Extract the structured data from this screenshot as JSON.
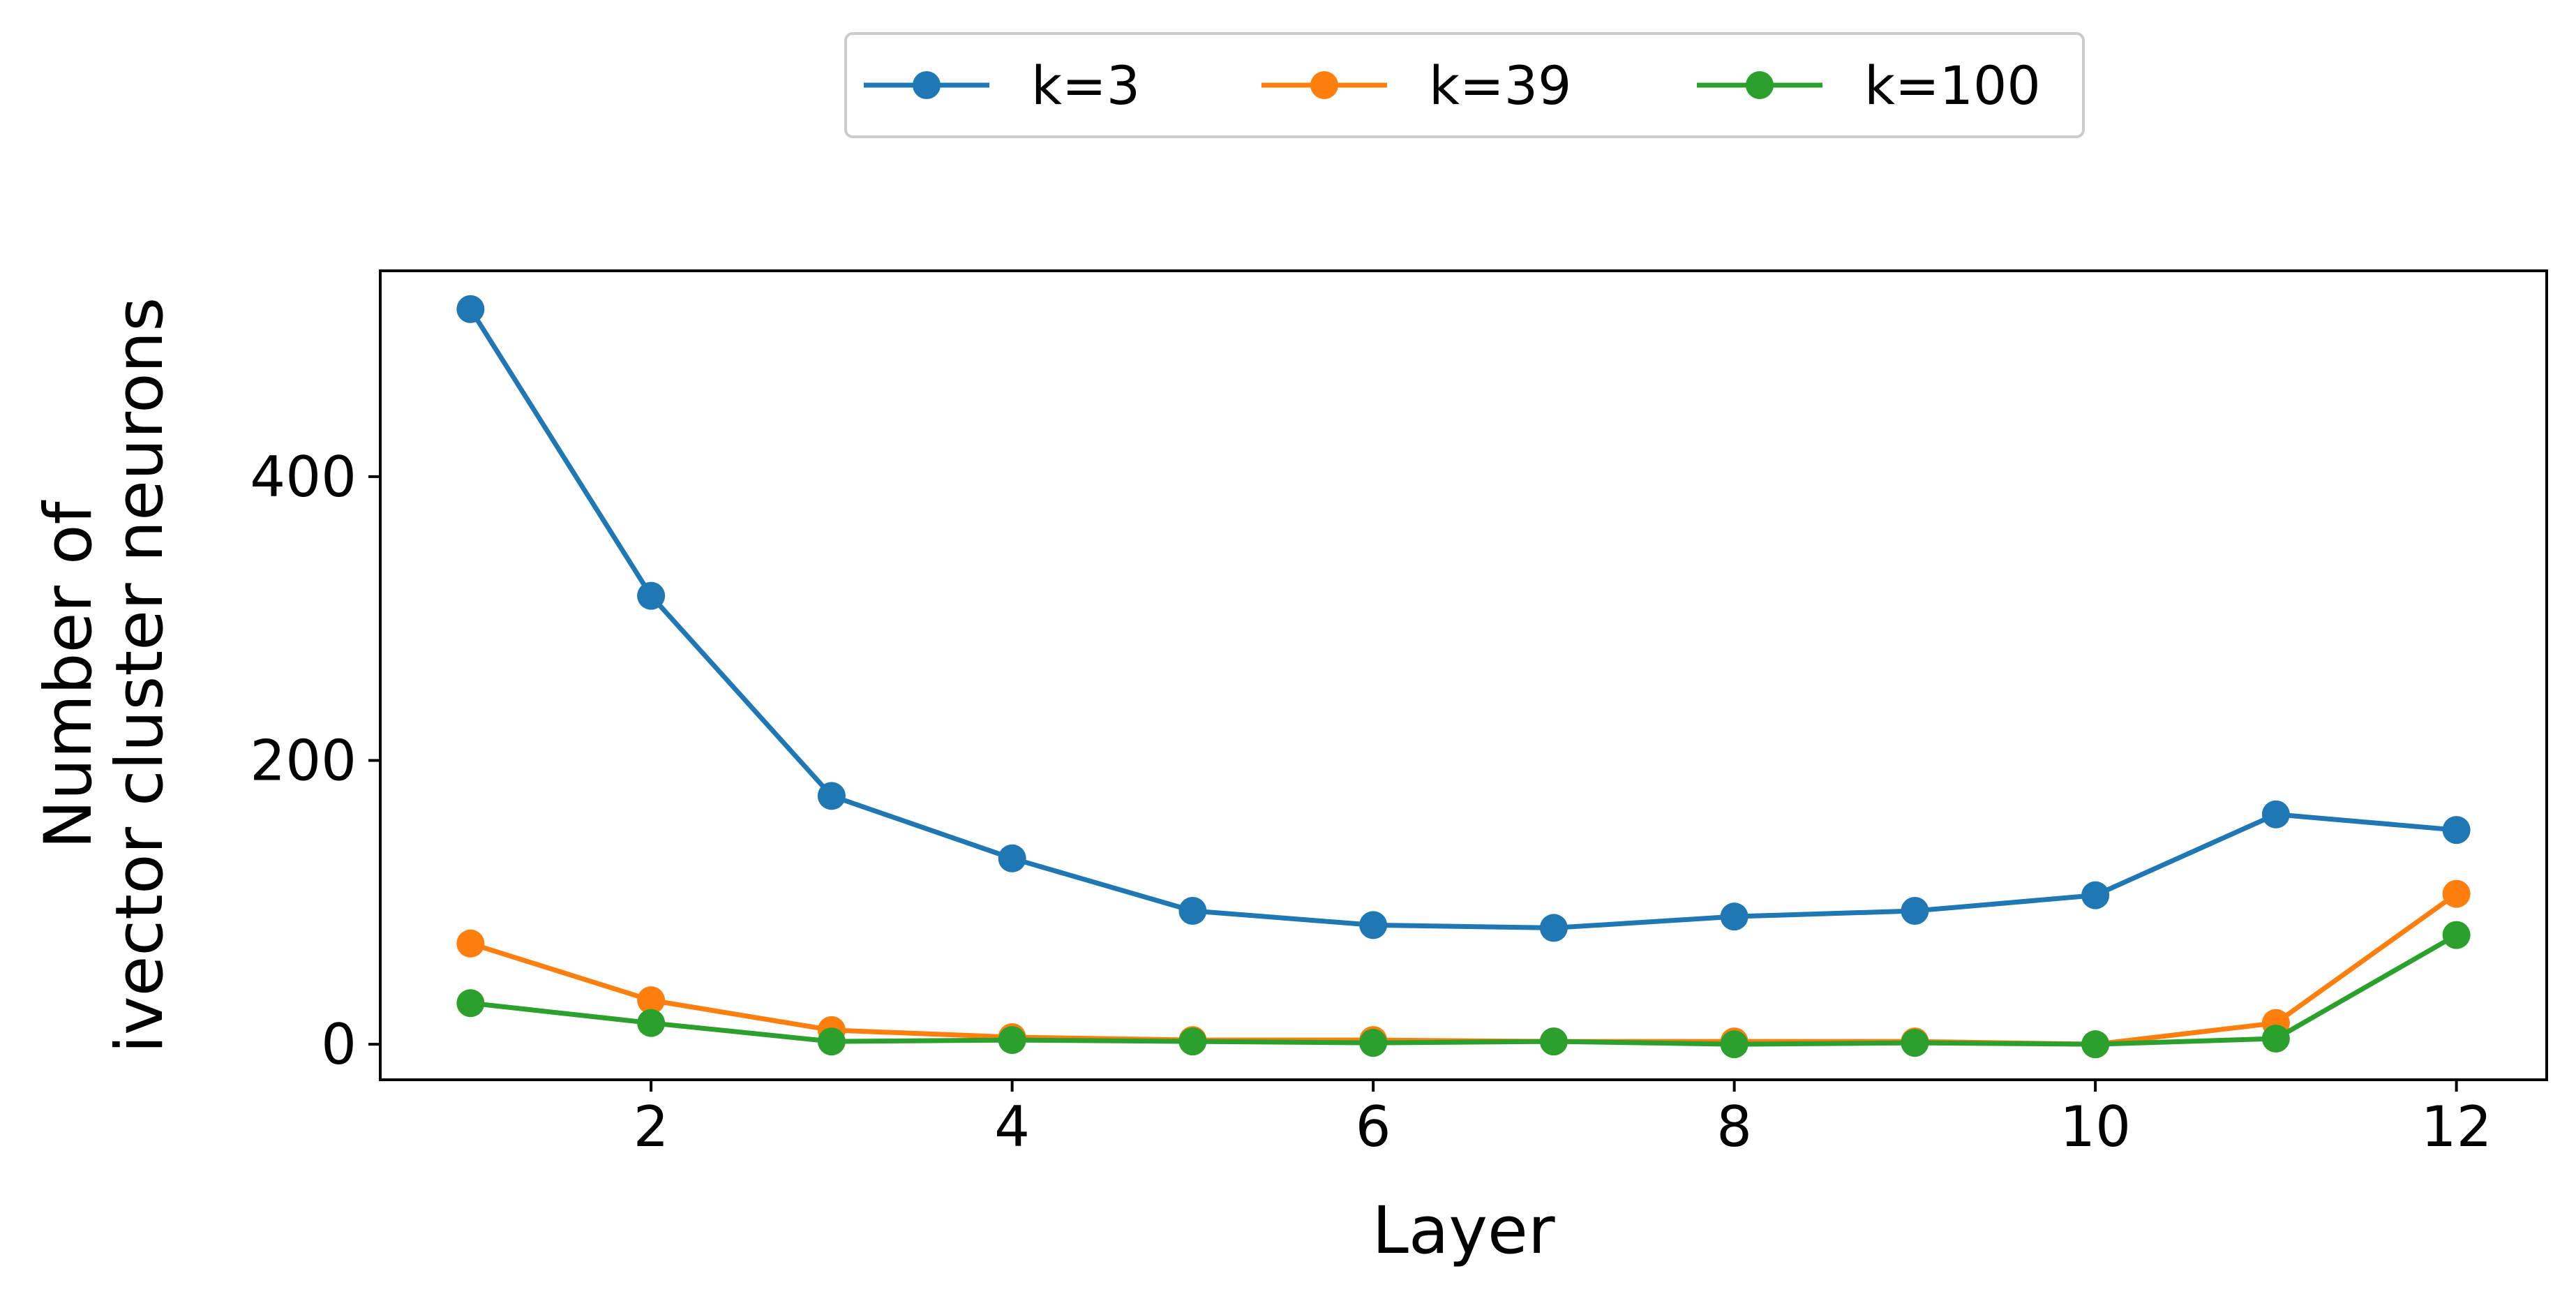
{
  "chart_data": {
    "type": "line",
    "title": "",
    "xlabel": "Layer",
    "ylabel_lines": [
      "Number of",
      "ivector cluster neurons"
    ],
    "x": [
      1,
      2,
      3,
      4,
      5,
      6,
      7,
      8,
      9,
      10,
      11,
      12
    ],
    "xlim": [
      0.5,
      12.5
    ],
    "ylim": [
      -25,
      545
    ],
    "xticks": [
      2,
      4,
      6,
      8,
      10,
      12
    ],
    "yticks": [
      0,
      200,
      400
    ],
    "grid": false,
    "legend_position": "top-center, above plot",
    "series": [
      {
        "name": "k=3",
        "color": "#1f77b4",
        "marker": "circle",
        "values": [
          518,
          316,
          175,
          131,
          94,
          84,
          82,
          90,
          94,
          105,
          162,
          151
        ]
      },
      {
        "name": "k=39",
        "color": "#ff7f0e",
        "marker": "circle",
        "values": [
          71,
          31,
          10,
          5,
          3,
          3,
          2,
          2,
          2,
          0,
          15,
          106
        ]
      },
      {
        "name": "k=100",
        "color": "#2ca02c",
        "marker": "circle",
        "values": [
          29,
          15,
          2,
          3,
          2,
          1,
          2,
          0,
          1,
          0,
          4,
          77
        ]
      }
    ]
  }
}
